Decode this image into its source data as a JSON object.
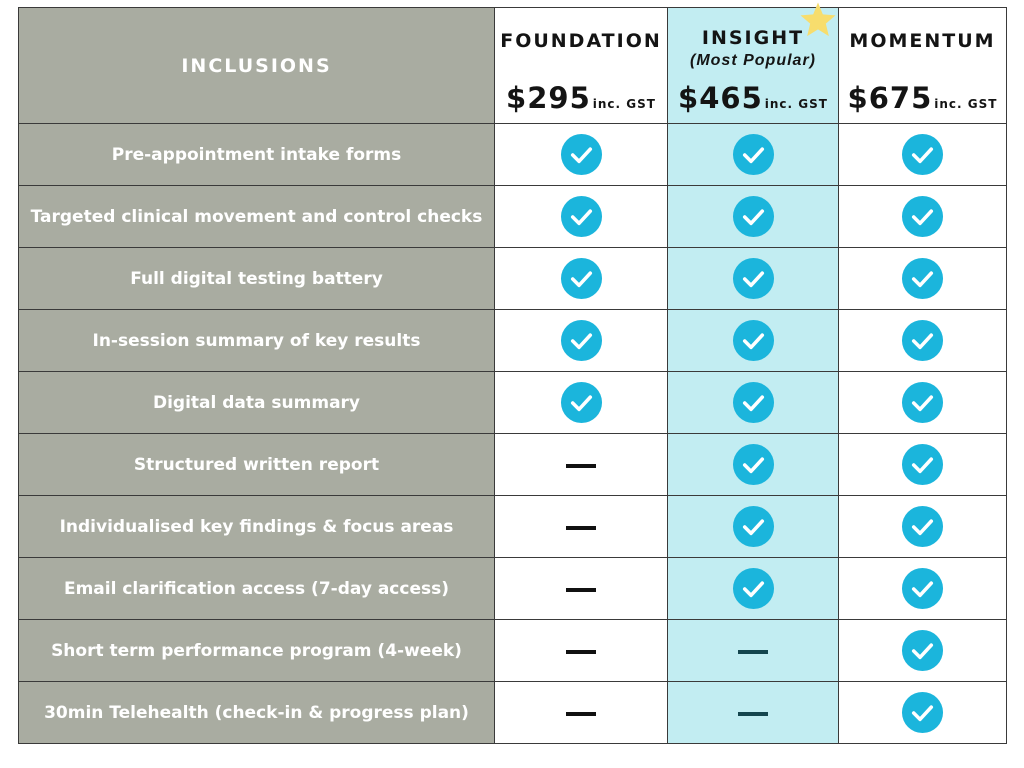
{
  "header": {
    "inclusions": "INCLUSIONS",
    "tiers": [
      {
        "name": "FOUNDATION",
        "note": "",
        "price": "$295",
        "gst": "inc. GST",
        "highlighted": false
      },
      {
        "name": "INSIGHT",
        "note": "(Most Popular)",
        "price": "$465",
        "gst": "inc. GST",
        "highlighted": true
      },
      {
        "name": "MOMENTUM",
        "note": "",
        "price": "$675",
        "gst": "inc. GST",
        "highlighted": false
      }
    ]
  },
  "rows": [
    {
      "feature": "Pre-appointment intake forms",
      "foundation": "check",
      "insight": "check",
      "momentum": "check"
    },
    {
      "feature": "Targeted clinical movement and control checks",
      "foundation": "check",
      "insight": "check",
      "momentum": "check"
    },
    {
      "feature": "Full digital testing battery",
      "foundation": "check",
      "insight": "check",
      "momentum": "check"
    },
    {
      "feature": "In-session summary of key results",
      "foundation": "check",
      "insight": "check",
      "momentum": "check"
    },
    {
      "feature": "Digital data summary",
      "foundation": "check",
      "insight": "check",
      "momentum": "check"
    },
    {
      "feature": "Structured written report",
      "foundation": "dash",
      "insight": "check",
      "momentum": "check"
    },
    {
      "feature": "Individualised key findings & focus areas",
      "foundation": "dash",
      "insight": "check",
      "momentum": "check"
    },
    {
      "feature": "Email clarification access (7-day access)",
      "foundation": "dash",
      "insight": "check",
      "momentum": "check"
    },
    {
      "feature": "Short term performance program (4-week)",
      "foundation": "dash",
      "insight": "dash",
      "momentum": "check"
    },
    {
      "feature": "30min Telehealth (check-in & progress plan)",
      "foundation": "dash",
      "insight": "dash",
      "momentum": "check"
    }
  ],
  "icons": {
    "included": "check-circle-icon",
    "not_included": "dash-icon",
    "popular": "star-icon"
  },
  "colors": {
    "label_bg": "#a9aca1",
    "highlight_bg": "#c2edf2",
    "check_fill": "#1bb5dc",
    "star": "#f7dd6d",
    "text": "#141414"
  }
}
